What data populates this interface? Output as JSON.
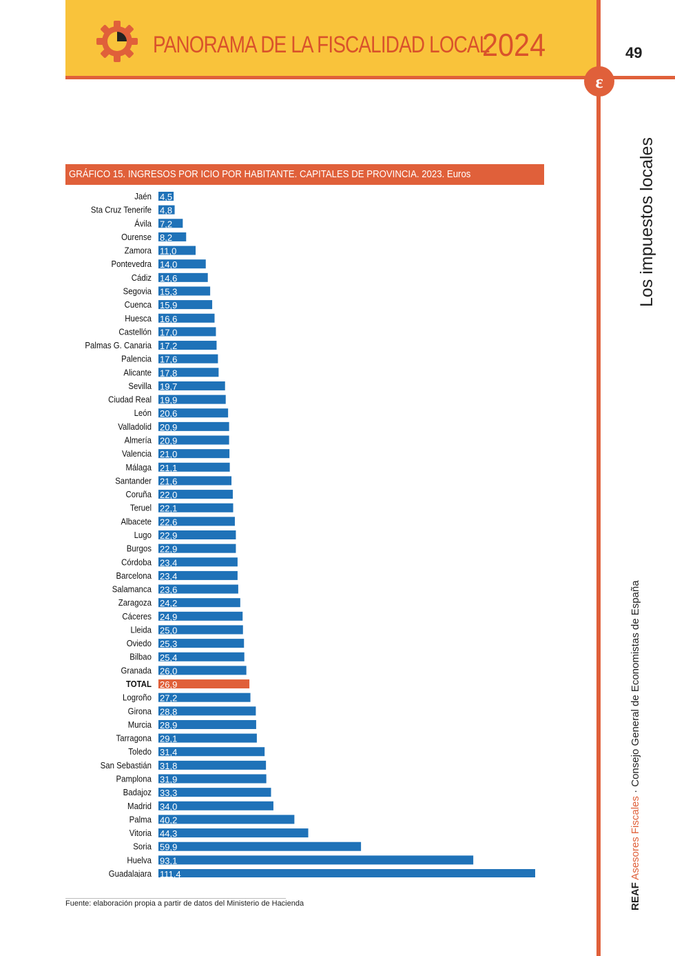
{
  "header": {
    "title": "PANORAMA DE LA FISCALIDAD LOCAL",
    "year": "2024",
    "page_number": "49",
    "gear_icon": "gear-clock-icon",
    "brand_icon": "ec-logo-icon",
    "colors": {
      "band": "#f9c33b",
      "accent": "#e0603a"
    }
  },
  "sidebar": {
    "section_title": "Los impuestos locales",
    "publisher_reaf": "REAF",
    "publisher_asesores": "Asesores Fiscales",
    "publisher_rest": " · Consejo General de Economistas de España"
  },
  "chart_header": {
    "title": "GRÁFICO 15. INGRESOS POR ICIO POR HABITANTE. CAPITALES DE PROVINCIA. 2023. Euros"
  },
  "chart_data": {
    "type": "bar",
    "orientation": "horizontal",
    "categories": [
      "Jaén",
      "Sta Cruz Tenerife",
      "Ávila",
      "Ourense",
      "Zamora",
      "Pontevedra",
      "Cádiz",
      "Segovia",
      "Cuenca",
      "Huesca",
      "Castellón",
      "Palmas  G. Canaria",
      "Palencia",
      "Alicante",
      "Sevilla",
      "Ciudad Real",
      "León",
      "Valladolid",
      "Almería",
      "Valencia",
      "Málaga",
      "Santander",
      "Coruña",
      "Teruel",
      "Albacete",
      "Lugo",
      "Burgos",
      "Córdoba",
      "Barcelona",
      "Salamanca",
      "Zaragoza",
      "Cáceres",
      "Lleida",
      "Oviedo",
      "Bilbao",
      "Granada",
      "TOTAL",
      "Logroño",
      "Girona",
      "Murcia",
      "Tarragona",
      "Toledo",
      "San Sebastián",
      "Pamplona",
      "Badajoz",
      "Madrid",
      "Palma",
      "Vitoria",
      "Soria",
      "Huelva",
      "Guadalajara"
    ],
    "values": [
      4.5,
      4.8,
      7.2,
      8.2,
      11.0,
      14.0,
      14.6,
      15.3,
      15.9,
      16.6,
      17.0,
      17.2,
      17.6,
      17.8,
      19.7,
      19.9,
      20.6,
      20.9,
      20.9,
      21.0,
      21.1,
      21.6,
      22.0,
      22.1,
      22.6,
      22.9,
      22.9,
      23.4,
      23.4,
      23.6,
      24.2,
      24.9,
      25.0,
      25.3,
      25.4,
      26.0,
      26.9,
      27.2,
      28.8,
      28.9,
      29.1,
      31.4,
      31.8,
      31.9,
      33.3,
      34.0,
      40.2,
      44.3,
      59.9,
      93.1,
      111.4
    ],
    "value_labels": [
      "4,5",
      "4,8",
      "7,2",
      "8,2",
      "11,0",
      "14,0",
      "14,6",
      "15,3",
      "15,9",
      "16,6",
      "17,0",
      "17,2",
      "17,6",
      "17,8",
      "19,7",
      "19,9",
      "20,6",
      "20,9",
      "20,9",
      "21,0",
      "21,1",
      "21,6",
      "22,0",
      "22,1",
      "22,6",
      "22,9",
      "22,9",
      "23,4",
      "23,4",
      "23,6",
      "24,2",
      "24,9",
      "25,0",
      "25,3",
      "25,4",
      "26,0",
      "26,9",
      "27,2",
      "28,8",
      "28,9",
      "29,1",
      "31,4",
      "31,8",
      "31,9",
      "33,3",
      "34,0",
      "40,2",
      "44,3",
      "59,9",
      "93,1",
      "111,4"
    ],
    "highlight": "TOTAL",
    "bar_color": "#1f72b8",
    "highlight_color": "#e0603a",
    "xlim": [
      0,
      111.4
    ],
    "grid": false,
    "legend": "none",
    "title": "GRÁFICO 15. INGRESOS POR ICIO POR HABITANTE. CAPITALES DE PROVINCIA. 2023. Euros",
    "xlabel": "",
    "ylabel": ""
  },
  "footnote": {
    "text": "Fuente: elaboración propia a partir de datos del Ministerio de Hacienda"
  }
}
